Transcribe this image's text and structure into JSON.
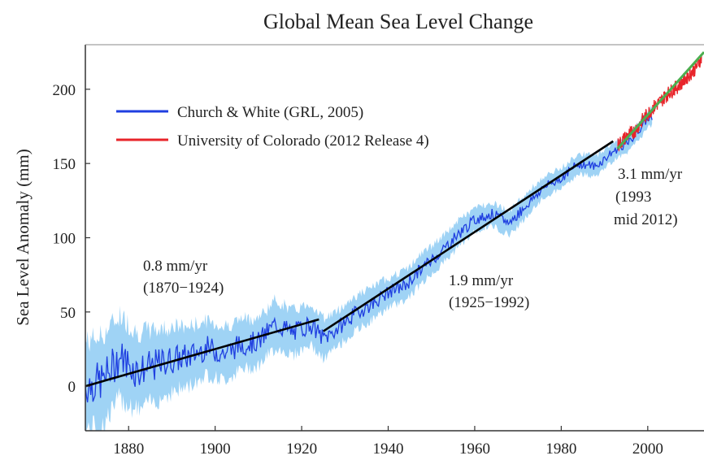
{
  "chart_data": {
    "type": "line",
    "title": "Global Mean Sea Level Change",
    "xlabel": "",
    "ylabel": "Sea Level Anomaly (mm)",
    "xlim": [
      1870,
      2013
    ],
    "ylim": [
      -30,
      230
    ],
    "xticks": [
      1880,
      1900,
      1920,
      1940,
      1960,
      1980,
      2000
    ],
    "yticks": [
      0,
      50,
      100,
      150,
      200
    ],
    "grid": false,
    "legend_position": "top-left",
    "colors": {
      "church_white": "#1f3fe0",
      "uncertainty": "#9fd3f5",
      "colorado": "#e8242a",
      "colorado_fit": "#4caf50",
      "trend": "#000000"
    },
    "legend": [
      {
        "label": "Church & White (GRL, 2005)",
        "color": "#1f3fe0"
      },
      {
        "label": "University of Colorado (2012 Release 4)",
        "color": "#e8242a"
      }
    ],
    "series": [
      {
        "name": "Church & White (GRL, 2005)",
        "x": [
          1870,
          1874,
          1878,
          1882,
          1886,
          1890,
          1894,
          1898,
          1902,
          1906,
          1910,
          1914,
          1918,
          1922,
          1925,
          1928,
          1932,
          1936,
          1940,
          1944,
          1948,
          1952,
          1956,
          1960,
          1964,
          1968,
          1972,
          1976,
          1980,
          1984,
          1988,
          1992,
          1996,
          2000,
          2001
        ],
        "y": [
          0,
          4,
          20,
          10,
          14,
          18,
          20,
          26,
          22,
          28,
          30,
          42,
          36,
          42,
          32,
          38,
          48,
          55,
          63,
          68,
          80,
          90,
          102,
          112,
          116,
          110,
          122,
          134,
          140,
          150,
          148,
          158,
          165,
          180,
          182
        ],
        "band": [
          30,
          30,
          28,
          26,
          24,
          22,
          20,
          18,
          18,
          17,
          16,
          16,
          15,
          14,
          14,
          12,
          12,
          11,
          10,
          10,
          10,
          9,
          9,
          8,
          8,
          8,
          8,
          7,
          7,
          7,
          7,
          6,
          6,
          6,
          6
        ]
      },
      {
        "name": "University of Colorado (2012 Release 4)",
        "x": [
          1993,
          1995,
          1997,
          1999,
          2001,
          2003,
          2005,
          2007,
          2009,
          2011,
          2012.5
        ],
        "y": [
          162,
          168,
          172,
          180,
          187,
          192,
          198,
          202,
          208,
          214,
          222
        ]
      }
    ],
    "trends": [
      {
        "label": "0.8 mm/yr",
        "period": "(1870−1924)",
        "x": [
          1870,
          1924
        ],
        "y": [
          0,
          45
        ]
      },
      {
        "label": "1.9 mm/yr",
        "period": "(1925−1992)",
        "x": [
          1925,
          1992
        ],
        "y": [
          37,
          165
        ]
      },
      {
        "label": "3.1 mm/yr",
        "period": "(1993",
        "period2": "mid 2012)",
        "x": [
          1993,
          2013
        ],
        "y": [
          160,
          225
        ]
      }
    ]
  }
}
